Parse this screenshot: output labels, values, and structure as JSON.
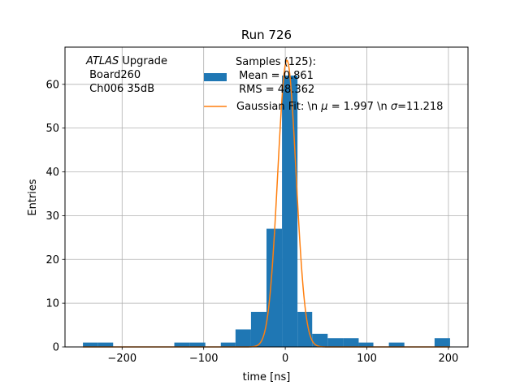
{
  "chart_data": {
    "type": "bar",
    "title": "Run 726",
    "xlabel": "time [ns]",
    "ylabel": "Entries",
    "xlim": [
      -270,
      224
    ],
    "ylim": [
      0,
      68.5
    ],
    "xticks": [
      -200,
      -100,
      0,
      100,
      200
    ],
    "yticks": [
      0,
      10,
      20,
      30,
      40,
      50,
      60
    ],
    "grid": true,
    "annotation": {
      "italic": "ATLAS",
      "rest": " Upgrade",
      "line2": " Board260",
      "line3": " Ch006 35dB"
    },
    "histogram": {
      "name_lines": [
        "Samples (125):",
        " Mean = 0.861",
        " RMS = 48.362"
      ],
      "color": "#1f77b4",
      "bins": [
        {
          "x0": -248,
          "x1": -230,
          "count": 1
        },
        {
          "x0": -230,
          "x1": -211,
          "count": 1
        },
        {
          "x0": -136,
          "x1": -117,
          "count": 1
        },
        {
          "x0": -117,
          "x1": -98,
          "count": 1
        },
        {
          "x0": -79,
          "x1": -61,
          "count": 1
        },
        {
          "x0": -61,
          "x1": -42,
          "count": 4
        },
        {
          "x0": -42,
          "x1": -23,
          "count": 8
        },
        {
          "x0": -23,
          "x1": -4,
          "count": 27
        },
        {
          "x0": -4,
          "x1": 15,
          "count": 62
        },
        {
          "x0": 15,
          "x1": 33,
          "count": 8
        },
        {
          "x0": 33,
          "x1": 52,
          "count": 3
        },
        {
          "x0": 52,
          "x1": 71,
          "count": 2
        },
        {
          "x0": 71,
          "x1": 90,
          "count": 2
        },
        {
          "x0": 90,
          "x1": 108,
          "count": 1
        },
        {
          "x0": 127,
          "x1": 146,
          "count": 1
        },
        {
          "x0": 183,
          "x1": 202,
          "count": 2
        }
      ]
    },
    "fit": {
      "name": "Gaussian Fit: \\n $\\mu$ = 1.997 \\n $\\sigma$=11.218",
      "label_parts": [
        "Gaussian Fit: \\n ",
        "μ",
        " = 1.997 \\n ",
        "σ",
        "=11.218"
      ],
      "color": "#ff7f0e",
      "mu": 1.997,
      "sigma": 11.218,
      "amplitude": 65.5,
      "x_range": [
        -248,
        202
      ]
    }
  }
}
